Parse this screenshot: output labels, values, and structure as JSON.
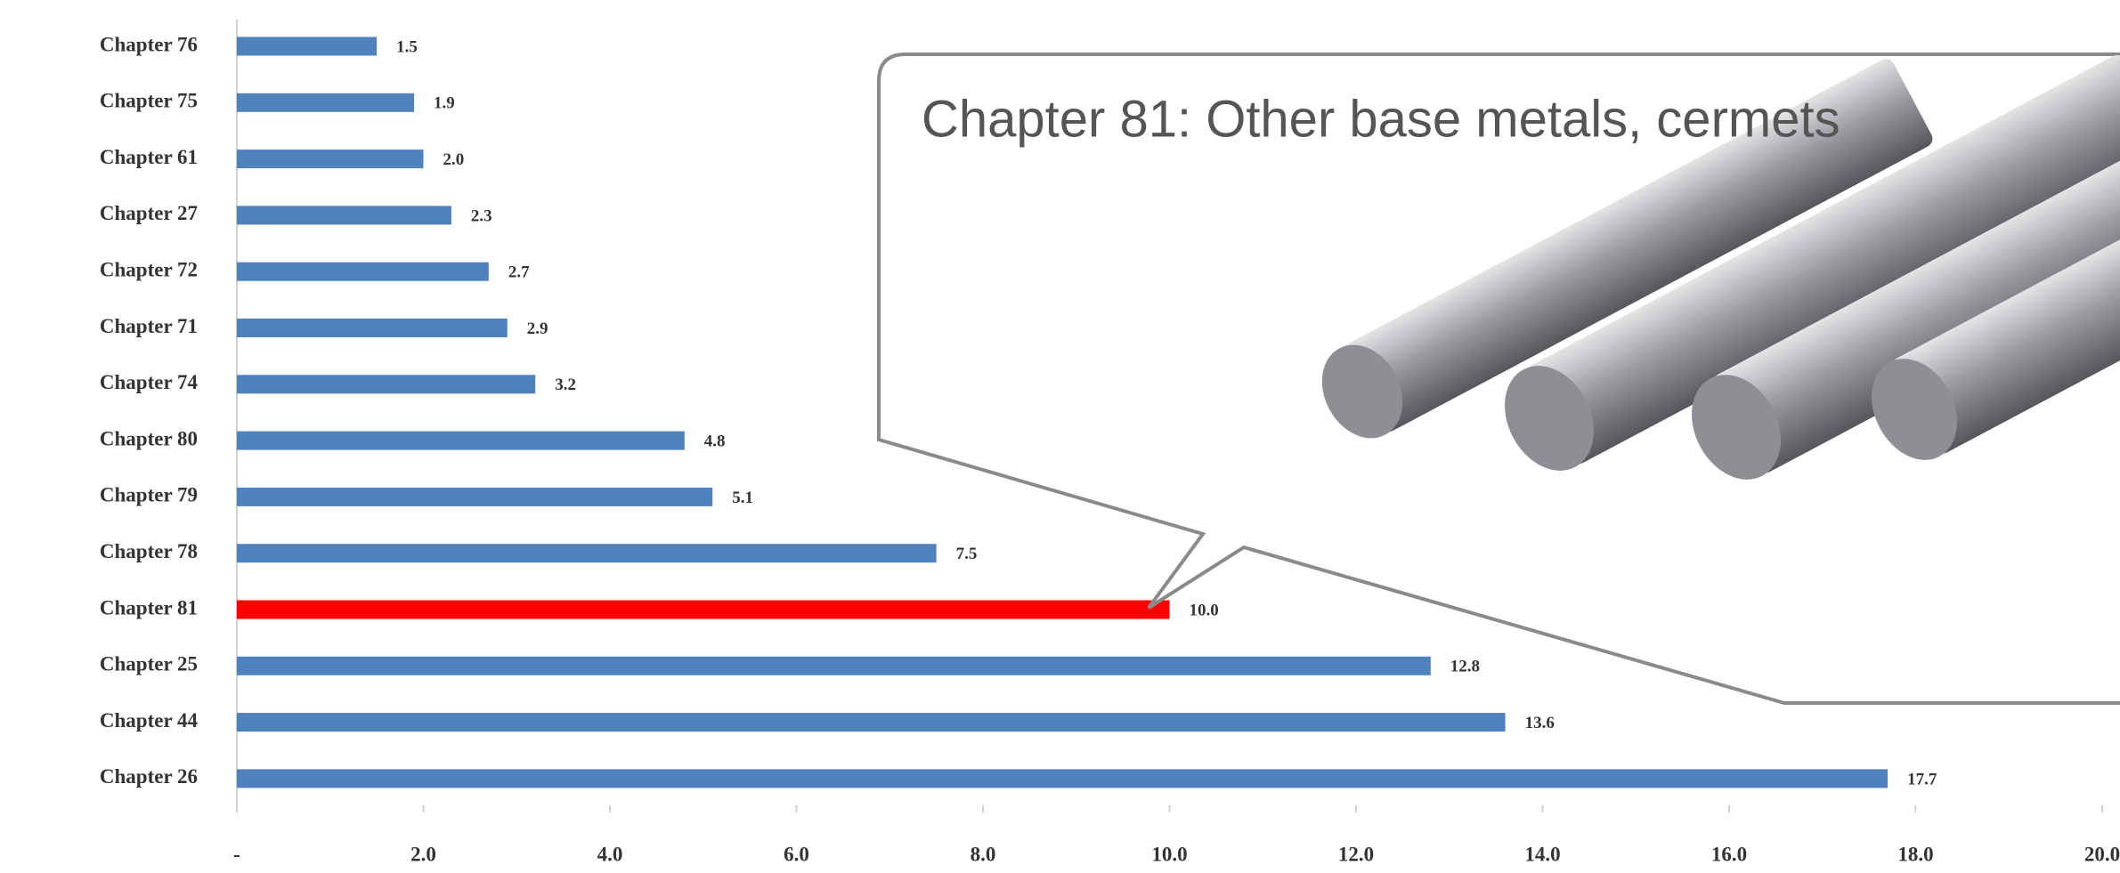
{
  "chart_data": {
    "type": "bar",
    "orientation": "horizontal",
    "annotation": "Chapter 81: Other base metals, cermets",
    "categories": [
      "Chapter 76",
      "Chapter 75",
      "Chapter 61",
      "Chapter 27",
      "Chapter 72",
      "Chapter 71",
      "Chapter 74",
      "Chapter 80",
      "Chapter 79",
      "Chapter 78",
      "Chapter 81",
      "Chapter 25",
      "Chapter 44",
      "Chapter 26"
    ],
    "values": [
      1.5,
      1.9,
      2.0,
      2.3,
      2.7,
      2.9,
      3.2,
      4.8,
      5.1,
      7.5,
      10.0,
      12.8,
      13.6,
      17.7
    ],
    "value_labels": [
      "1.5",
      "1.9",
      "2.0",
      "2.3",
      "2.7",
      "2.9",
      "3.2",
      "4.8",
      "5.1",
      "7.5",
      "10.0",
      "12.8",
      "13.6",
      "17.7"
    ],
    "colors": [
      "#4f81bd",
      "#4f81bd",
      "#4f81bd",
      "#4f81bd",
      "#4f81bd",
      "#4f81bd",
      "#4f81bd",
      "#4f81bd",
      "#4f81bd",
      "#4f81bd",
      "#ff0000",
      "#4f81bd",
      "#4f81bd",
      "#4f81bd"
    ],
    "xlim": [
      0,
      20
    ],
    "xticks": [
      {
        "value": 0,
        "label": "-"
      },
      {
        "value": 2,
        "label": "2.0"
      },
      {
        "value": 4,
        "label": "4.0"
      },
      {
        "value": 6,
        "label": "6.0"
      },
      {
        "value": 8,
        "label": "8.0"
      },
      {
        "value": 10,
        "label": "10.0"
      },
      {
        "value": 12,
        "label": "12.0"
      },
      {
        "value": 14,
        "label": "14.0"
      },
      {
        "value": 16,
        "label": "16.0"
      },
      {
        "value": 18,
        "label": "18.0"
      },
      {
        "value": 20,
        "label": "20.0"
      }
    ],
    "grid": false
  }
}
